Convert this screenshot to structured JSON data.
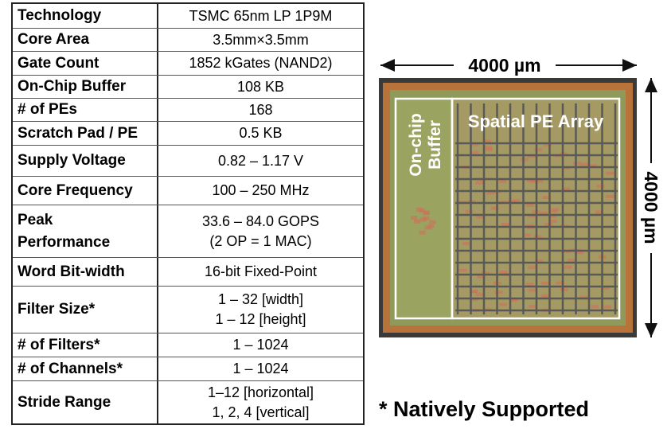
{
  "table": {
    "rows": [
      {
        "label": [
          "Technology"
        ],
        "value": [
          "TSMC 65nm LP 1P9M"
        ]
      },
      {
        "label": [
          "Core Area"
        ],
        "value": [
          "3.5mm×3.5mm"
        ]
      },
      {
        "label": [
          "Gate Count"
        ],
        "value": [
          "1852 kGates (NAND2)"
        ]
      },
      {
        "label": [
          "On-Chip Buffer"
        ],
        "value": [
          "108 KB"
        ]
      },
      {
        "label": [
          "# of PEs"
        ],
        "value": [
          "168"
        ]
      },
      {
        "label": [
          "Scratch Pad / PE"
        ],
        "value": [
          "0.5 KB"
        ]
      },
      {
        "label": [
          "Supply Voltage"
        ],
        "value": [
          "0.82 – 1.17 V"
        ]
      },
      {
        "label": [
          "Core Frequency"
        ],
        "value": [
          "100 – 250 MHz"
        ]
      },
      {
        "label": [
          "Peak",
          "Performance"
        ],
        "value": [
          "33.6 – 84.0 GOPS",
          "(2 OP = 1 MAC)"
        ]
      },
      {
        "label": [
          "Word Bit-width"
        ],
        "value": [
          "16-bit Fixed-Point"
        ]
      },
      {
        "label": [
          "Filter Size*"
        ],
        "value": [
          "1 – 32 [width]",
          "1 – 12 [height]"
        ]
      },
      {
        "label": [
          "# of Filters*"
        ],
        "value": [
          "1 – 1024"
        ]
      },
      {
        "label": [
          "# of Channels*"
        ],
        "value": [
          "1 – 1024"
        ]
      },
      {
        "label": [
          "Stride Range"
        ],
        "value": [
          "1–12 [horizontal]",
          "1, 2, 4 [vertical]"
        ]
      }
    ]
  },
  "die": {
    "width_label": "4000 µm",
    "height_label": "4000 µm",
    "buffer_label": [
      "On-chip",
      "Buffer"
    ],
    "array_label": "Spatial PE Array"
  },
  "footnote": "* Natively Supported"
}
